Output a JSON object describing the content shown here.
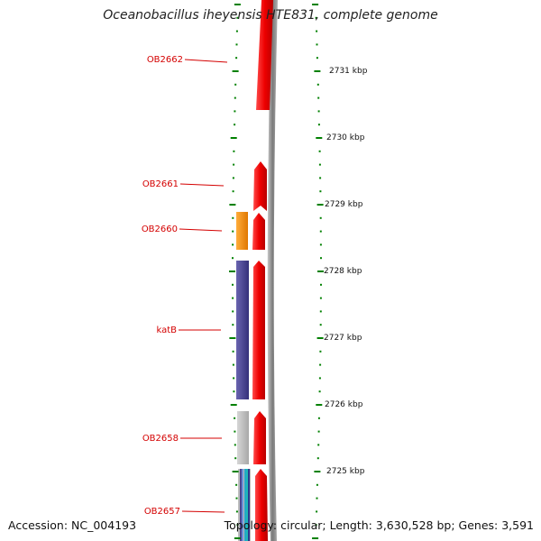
{
  "title": "Oceanobacillus iheyensis HTE831, complete genome",
  "footer": {
    "accession": "Accession: NC_004193",
    "topology": "Topology: circular; Length: 3,630,528 bp; Genes: 3,591"
  },
  "kbp_labels": [
    "2731 kbp",
    "2730 kbp",
    "2729 kbp",
    "2728 kbp",
    "2727 kbp",
    "2726 kbp",
    "2725 kbp"
  ],
  "gene_labels": [
    "OB2662",
    "OB2661",
    "OB2660",
    "katB",
    "OB2658",
    "OB2657"
  ],
  "colors": {
    "gene_red": "#ee0000",
    "orange": "#ff8c00",
    "purple": "#4a4590",
    "grey": "#bdbdbd",
    "tick_green": "#008000",
    "label_red": "#d40000"
  }
}
